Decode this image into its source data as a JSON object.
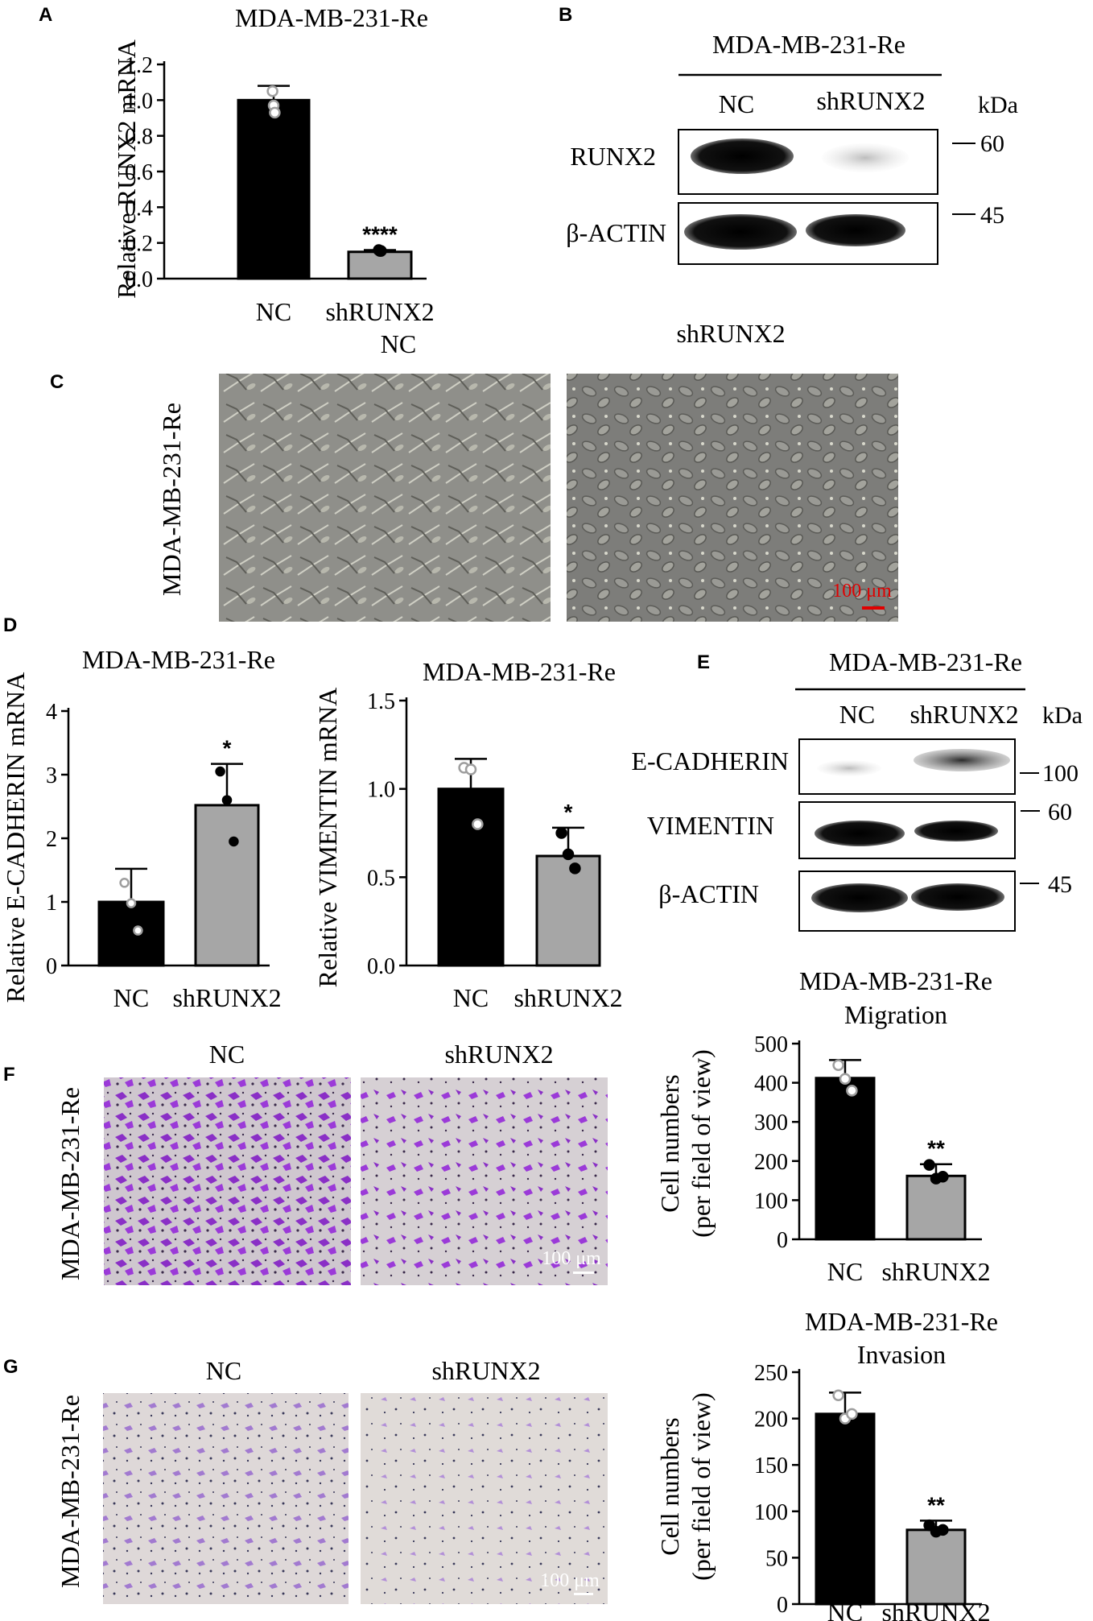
{
  "panel_letters": {
    "a": "A",
    "b": "B",
    "c": "C",
    "d": "D",
    "e": "E",
    "f": "F",
    "g": "G"
  },
  "colors": {
    "nc_bar": "#000000",
    "sh_bar": "#a6a6a6",
    "scale_bar_red": "#e00000",
    "crystal_violet": "#8a2fc6"
  },
  "panel_b": {
    "cell_line": "MDA-MB-231-Re",
    "lanes": [
      "NC",
      "shRUNX2"
    ],
    "unit": "kDa",
    "blots": [
      {
        "label": "RUNX2",
        "marker": "60"
      },
      {
        "label": "β-ACTIN",
        "marker": "45"
      }
    ]
  },
  "panel_c": {
    "row_label": "MDA-MB-231-Re",
    "header": "shRUNX2",
    "image_left": "phase-contrast-nc",
    "image_right": "phase-contrast-shrunx2",
    "scale_bar": "100 μm"
  },
  "panel_e": {
    "cell_line": "MDA-MB-231-Re",
    "lanes": [
      "NC",
      "shRUNX2"
    ],
    "unit": "kDa",
    "blots": [
      {
        "label": "E-CADHERIN",
        "marker": "100"
      },
      {
        "label": "VIMENTIN",
        "marker": "60"
      },
      {
        "label": "β-ACTIN",
        "marker": "45"
      }
    ]
  },
  "panel_f": {
    "row_label": "MDA-MB-231-Re",
    "headers": [
      "NC",
      "shRUNX2"
    ],
    "scale_bar": "100 μm"
  },
  "panel_g": {
    "row_label": "MDA-MB-231-Re",
    "headers": [
      "NC",
      "shRUNX2"
    ],
    "scale_bar": "100 μm"
  },
  "chart_data": [
    {
      "id": "A",
      "type": "bar",
      "title": "MDA-MB-231-Re",
      "ylabel": "Relative RUNX2 mRNA",
      "categories": [
        "NC",
        "shRUNX2"
      ],
      "values": [
        1.0,
        0.15
      ],
      "errors": [
        0.08,
        0.01
      ],
      "points": [
        [
          1.05,
          0.97,
          0.93
        ],
        [
          0.16,
          0.155,
          0.155
        ]
      ],
      "significance": [
        "",
        "****"
      ],
      "ylim": [
        0,
        1.2
      ],
      "yticks": [
        "0.0",
        "0.2",
        "0.4",
        "0.6",
        "0.8",
        "1.0",
        "1.2"
      ],
      "extra_label": "NC"
    },
    {
      "id": "D1",
      "type": "bar",
      "title": "MDA-MB-231-Re",
      "ylabel": "Relative E-CADHERIN mRNA",
      "categories": [
        "NC",
        "shRUNX2"
      ],
      "values": [
        1.0,
        2.52
      ],
      "errors": [
        0.52,
        0.65
      ],
      "points": [
        [
          1.3,
          0.98,
          0.55
        ],
        [
          3.05,
          2.6,
          1.95
        ]
      ],
      "significance": [
        "",
        "*"
      ],
      "ylim": [
        0,
        4
      ],
      "yticks": [
        "0",
        "1",
        "2",
        "3",
        "4"
      ]
    },
    {
      "id": "D2",
      "type": "bar",
      "title": "MDA-MB-231-Re",
      "ylabel": "Relative VIMENTIN mRNA",
      "categories": [
        "NC",
        "shRUNX2"
      ],
      "values": [
        1.0,
        0.62
      ],
      "errors": [
        0.17,
        0.16
      ],
      "points": [
        [
          1.12,
          1.11,
          0.8
        ],
        [
          0.75,
          0.63,
          0.55
        ]
      ],
      "significance": [
        "",
        "*"
      ],
      "ylim": [
        0,
        1.5
      ],
      "yticks": [
        "0.0",
        "0.5",
        "1.0",
        "1.5"
      ]
    },
    {
      "id": "F",
      "type": "bar",
      "title": "MDA-MB-231-Re",
      "subtitle": "Migration",
      "ylabel": "Cell numbers",
      "ylabel2": "(per field of view)",
      "categories": [
        "NC",
        "shRUNX2"
      ],
      "values": [
        412,
        162
      ],
      "errors": [
        46,
        30
      ],
      "points": [
        [
          445,
          410,
          380
        ],
        [
          190,
          155,
          160
        ]
      ],
      "significance": [
        "",
        "**"
      ],
      "ylim": [
        0,
        500
      ],
      "yticks": [
        "0",
        "100",
        "200",
        "300",
        "400",
        "500"
      ]
    },
    {
      "id": "G",
      "type": "bar",
      "title": "MDA-MB-231-Re",
      "subtitle": "Invasion",
      "ylabel": "Cell numbers",
      "ylabel2": "(per field of view)",
      "categories": [
        "NC",
        "shRUNX2"
      ],
      "values": [
        205,
        80
      ],
      "errors": [
        23,
        10
      ],
      "points": [
        [
          225,
          200,
          205
        ],
        [
          85,
          78,
          80
        ]
      ],
      "significance": [
        "",
        "**"
      ],
      "ylim": [
        0,
        250
      ],
      "yticks": [
        "0",
        "50",
        "100",
        "150",
        "200",
        "250"
      ]
    }
  ]
}
